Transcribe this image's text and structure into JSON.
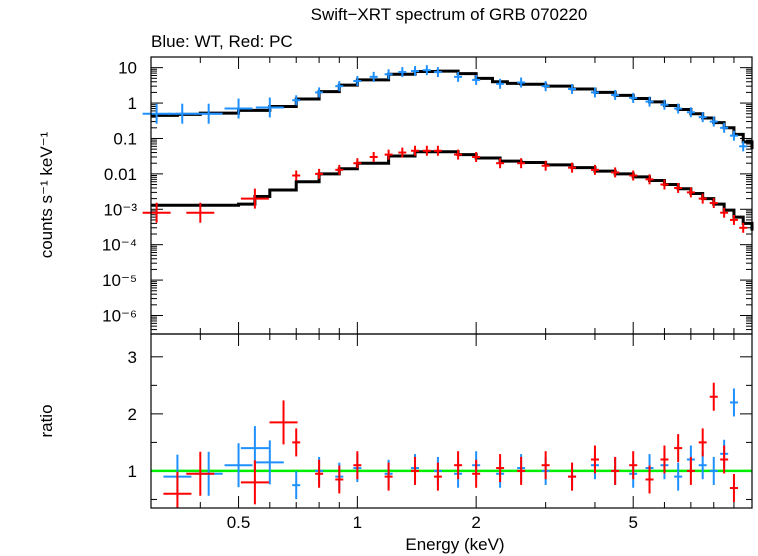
{
  "chart_data": [
    {
      "type": "scatter",
      "panel": "spectrum",
      "title": "Swift−XRT spectrum of GRB 070220",
      "subtitle": "Blue: WT, Red: PC",
      "xlabel": "Energy (keV)",
      "ylabel": "counts s⁻¹ keV⁻¹",
      "x_scale": "log",
      "y_scale": "log",
      "xlim": [
        0.3,
        10
      ],
      "ylim": [
        3e-07,
        20
      ],
      "y_ticks": [
        {
          "value": 10,
          "label": "10"
        },
        {
          "value": 1,
          "label": "1"
        },
        {
          "value": 0.1,
          "label": "0.1"
        },
        {
          "value": 0.01,
          "label": "0.01"
        },
        {
          "value": 0.001,
          "label": "10⁻³"
        },
        {
          "value": 0.0001,
          "label": "10⁻⁴"
        },
        {
          "value": 1e-05,
          "label": "10⁻⁵"
        },
        {
          "value": 1e-06,
          "label": "10⁻⁶"
        }
      ],
      "series": [
        {
          "color": "#1e90ff",
          "x": [
            0.31,
            0.36,
            0.42,
            0.5,
            0.6,
            0.7,
            0.8,
            0.9,
            1.0,
            1.1,
            1.2,
            1.3,
            1.4,
            1.5,
            1.6,
            1.8,
            2.0,
            2.3,
            2.6,
            3.0,
            3.5,
            4.0,
            4.5,
            5.0,
            5.5,
            6.0,
            6.5,
            7.0,
            7.5,
            8.0,
            8.5,
            9.0,
            9.5
          ],
          "y": [
            0.5,
            0.5,
            0.5,
            0.7,
            0.75,
            1.2,
            2.0,
            3.0,
            4.2,
            5.5,
            6.5,
            7.5,
            8.0,
            8.5,
            7.5,
            5.5,
            4.5,
            3.5,
            3.8,
            3.0,
            2.5,
            2.0,
            1.7,
            1.4,
            1.1,
            0.9,
            0.7,
            0.55,
            0.4,
            0.3,
            0.2,
            0.12,
            0.06
          ]
        },
        {
          "color": "#ff0000",
          "x": [
            0.31,
            0.4,
            0.55,
            0.7,
            0.8,
            0.9,
            1.0,
            1.1,
            1.2,
            1.3,
            1.4,
            1.5,
            1.6,
            1.8,
            2.0,
            2.3,
            2.6,
            3.0,
            3.5,
            4.0,
            4.5,
            5.0,
            5.5,
            6.0,
            6.5,
            7.0,
            7.5,
            8.0,
            8.5,
            9.0,
            9.5
          ],
          "y": [
            0.0008,
            0.0008,
            0.002,
            0.009,
            0.01,
            0.013,
            0.02,
            0.03,
            0.035,
            0.04,
            0.045,
            0.045,
            0.045,
            0.035,
            0.03,
            0.02,
            0.02,
            0.017,
            0.015,
            0.013,
            0.011,
            0.009,
            0.007,
            0.005,
            0.004,
            0.003,
            0.002,
            0.0015,
            0.0008,
            0.0005,
            0.0003
          ]
        }
      ],
      "model_lines": [
        {
          "color": "#000000",
          "x": [
            0.3,
            0.35,
            0.4,
            0.5,
            0.6,
            0.7,
            0.8,
            0.9,
            1.0,
            1.2,
            1.4,
            1.6,
            1.8,
            2.0,
            2.2,
            2.4,
            2.6,
            3.0,
            3.5,
            4.0,
            4.5,
            5.0,
            5.5,
            6.0,
            6.5,
            7.0,
            7.5,
            8.0,
            8.5,
            9.0,
            9.5,
            10.0
          ],
          "y": [
            0.45,
            0.48,
            0.52,
            0.62,
            0.8,
            1.3,
            2.1,
            3.2,
            4.5,
            6.5,
            7.8,
            8.0,
            6.8,
            5.0,
            4.0,
            3.6,
            3.4,
            3.0,
            2.5,
            2.0,
            1.65,
            1.35,
            1.08,
            0.85,
            0.66,
            0.5,
            0.38,
            0.28,
            0.2,
            0.13,
            0.08,
            0.05
          ]
        },
        {
          "color": "#000000",
          "x": [
            0.3,
            0.35,
            0.4,
            0.5,
            0.55,
            0.6,
            0.7,
            0.8,
            0.9,
            1.0,
            1.2,
            1.4,
            1.6,
            1.8,
            2.0,
            2.3,
            2.6,
            3.0,
            3.5,
            4.0,
            4.5,
            5.0,
            5.5,
            6.0,
            6.5,
            7.0,
            7.5,
            8.0,
            8.5,
            9.0,
            9.5,
            10.0
          ],
          "y": [
            0.0013,
            0.0013,
            0.0013,
            0.0014,
            0.0023,
            0.0035,
            0.006,
            0.01,
            0.014,
            0.02,
            0.032,
            0.042,
            0.042,
            0.035,
            0.028,
            0.023,
            0.021,
            0.018,
            0.015,
            0.012,
            0.01,
            0.0082,
            0.0065,
            0.005,
            0.0038,
            0.0028,
            0.002,
            0.0014,
            0.00095,
            0.0006,
            0.0004,
            0.00025
          ]
        }
      ]
    },
    {
      "type": "scatter",
      "panel": "ratio",
      "xlabel": "Energy (keV)",
      "ylabel": "ratio",
      "x_scale": "log",
      "xlim": [
        0.3,
        10
      ],
      "ylim": [
        0.35,
        3.4
      ],
      "x_ticks": [
        {
          "value": 0.5,
          "label": "0.5"
        },
        {
          "value": 1,
          "label": "1"
        },
        {
          "value": 2,
          "label": "2"
        },
        {
          "value": 5,
          "label": "5"
        }
      ],
      "y_ticks": [
        {
          "value": 1,
          "label": "1"
        },
        {
          "value": 2,
          "label": "2"
        },
        {
          "value": 3,
          "label": "3"
        }
      ],
      "reference_line": {
        "value": 1,
        "color": "#00ee00"
      },
      "series": [
        {
          "color": "#1e90ff",
          "x": [
            0.35,
            0.42,
            0.5,
            0.55,
            0.6,
            0.7,
            0.8,
            0.9,
            1.0,
            1.2,
            1.4,
            1.6,
            1.8,
            2.0,
            2.3,
            2.6,
            3.0,
            3.5,
            4.0,
            4.5,
            5.0,
            5.5,
            6.0,
            6.5,
            7.0,
            7.5,
            8.0,
            8.5,
            9.0
          ],
          "y": [
            0.9,
            0.95,
            1.1,
            1.4,
            1.15,
            0.75,
            1.0,
            0.9,
            1.05,
            0.95,
            1.05,
            1.0,
            0.95,
            1.1,
            0.95,
            1.05,
            1.0,
            0.9,
            1.1,
            1.0,
            0.95,
            1.05,
            1.1,
            0.9,
            1.2,
            1.1,
            1.0,
            1.3,
            2.2
          ]
        },
        {
          "color": "#ff0000",
          "x": [
            0.35,
            0.4,
            0.55,
            0.65,
            0.7,
            0.8,
            0.9,
            1.0,
            1.2,
            1.4,
            1.6,
            1.8,
            2.0,
            2.3,
            2.6,
            3.0,
            3.5,
            4.0,
            4.5,
            5.0,
            5.5,
            6.0,
            6.5,
            7.0,
            7.5,
            8.0,
            8.5,
            9.0
          ],
          "y": [
            0.6,
            0.95,
            0.8,
            1.85,
            1.5,
            0.95,
            0.85,
            1.1,
            0.9,
            1.0,
            0.9,
            1.1,
            0.95,
            1.05,
            1.0,
            1.1,
            0.9,
            1.2,
            1.0,
            1.1,
            0.85,
            1.2,
            1.4,
            1.0,
            1.5,
            2.3,
            1.2,
            0.7
          ]
        }
      ]
    }
  ]
}
